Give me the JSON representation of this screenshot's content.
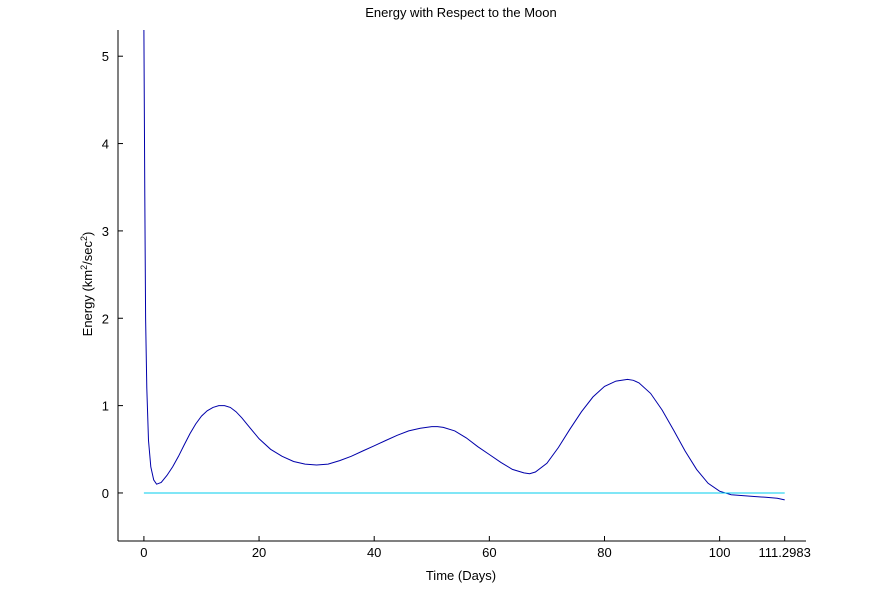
{
  "chart_data": {
    "type": "line",
    "title": "Energy with Respect to the Moon",
    "xlabel": "Time (Days)",
    "ylabel_parts": [
      "Energy (km",
      "2",
      "/sec",
      "2",
      ")"
    ],
    "xlim": [
      -4.5,
      115
    ],
    "ylim": [
      -0.55,
      5.3
    ],
    "x_ticks": [
      0,
      20,
      40,
      60,
      80,
      100,
      111.2983
    ],
    "x_tick_labels": [
      "0",
      "20",
      "40",
      "60",
      "80",
      "100",
      "111.2983"
    ],
    "y_ticks": [
      0,
      1,
      2,
      3,
      4,
      5
    ],
    "y_tick_labels": [
      "0",
      "1",
      "2",
      "3",
      "4",
      "5"
    ],
    "grid": false,
    "series": [
      {
        "color": "#0000aa",
        "x": [
          0,
          0.15,
          0.3,
          0.5,
          0.8,
          1.2,
          1.7,
          2.2,
          3,
          4,
          5,
          6,
          7,
          8,
          9,
          10,
          11,
          12,
          13,
          14,
          15,
          16,
          17,
          18,
          19,
          20,
          22,
          24,
          26,
          28,
          30,
          32,
          34,
          36,
          38,
          40,
          42,
          44,
          46,
          48,
          50,
          51,
          52,
          54,
          56,
          58,
          60,
          62,
          64,
          66,
          67,
          68,
          70,
          72,
          74,
          76,
          78,
          80,
          82,
          84,
          85,
          86,
          88,
          90,
          92,
          94,
          96,
          98,
          100,
          102,
          104,
          106,
          108,
          110,
          111.2983
        ],
        "y": [
          5.3,
          3.4,
          2.0,
          1.2,
          0.6,
          0.3,
          0.15,
          0.1,
          0.12,
          0.2,
          0.3,
          0.42,
          0.55,
          0.68,
          0.79,
          0.88,
          0.94,
          0.98,
          1.0,
          1.0,
          0.98,
          0.93,
          0.86,
          0.78,
          0.7,
          0.62,
          0.5,
          0.42,
          0.36,
          0.33,
          0.32,
          0.33,
          0.37,
          0.42,
          0.48,
          0.54,
          0.6,
          0.66,
          0.71,
          0.74,
          0.76,
          0.76,
          0.75,
          0.71,
          0.63,
          0.53,
          0.44,
          0.35,
          0.27,
          0.23,
          0.22,
          0.24,
          0.34,
          0.52,
          0.73,
          0.93,
          1.1,
          1.22,
          1.28,
          1.3,
          1.29,
          1.26,
          1.14,
          0.95,
          0.72,
          0.48,
          0.27,
          0.11,
          0.02,
          -0.02,
          -0.03,
          -0.04,
          -0.05,
          -0.06,
          -0.08
        ]
      },
      {
        "color": "#00ccee",
        "x": [
          0,
          111.2983
        ],
        "y": [
          0,
          0
        ]
      }
    ]
  }
}
